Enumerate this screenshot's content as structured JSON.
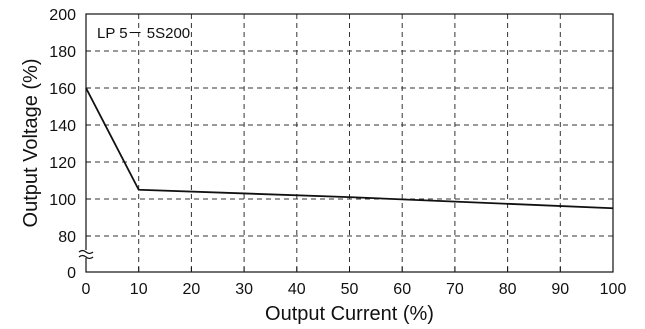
{
  "chart_data": {
    "type": "line",
    "title": "",
    "xlabel": "Output Current (%)",
    "ylabel": "Output Voltage (%)",
    "annotation": "LP 5－ 5S200",
    "xlim": [
      0,
      100
    ],
    "ylim": [
      0,
      200
    ],
    "y_axis_break": true,
    "grid": true,
    "x_ticks": [
      0,
      10,
      20,
      30,
      40,
      50,
      60,
      70,
      80,
      90,
      100
    ],
    "y_ticks": [
      0,
      80,
      100,
      120,
      140,
      160,
      180,
      200
    ],
    "series": [
      {
        "x": [
          0,
          10,
          50,
          100
        ],
        "y": [
          160,
          105,
          101,
          95
        ]
      }
    ],
    "colors": {
      "line": "#111111",
      "grid": "#333333",
      "frame": "#111111"
    }
  }
}
